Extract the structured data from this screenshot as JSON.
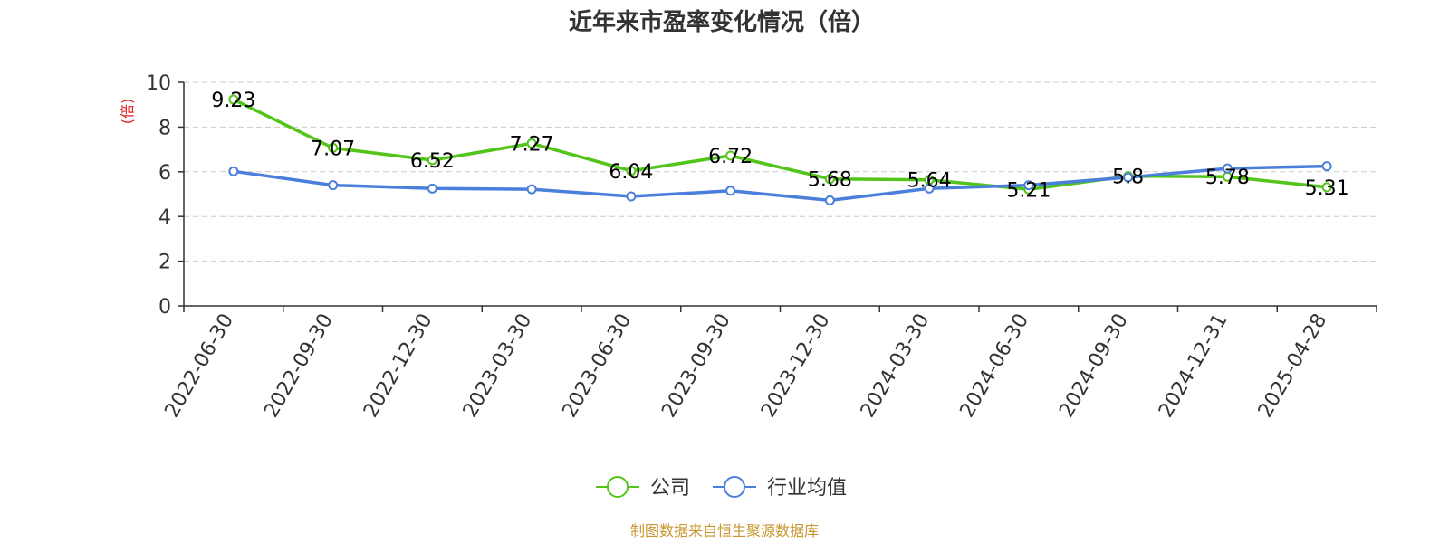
{
  "chart_data": {
    "type": "line",
    "title": "近年来市盈率变化情况（倍）",
    "ylabel": "(倍)",
    "ylim": [
      0,
      10
    ],
    "yticks": [
      0,
      2,
      4,
      6,
      8,
      10
    ],
    "grid": true,
    "legend_position": "bottom-center",
    "categories": [
      "2022-06-30",
      "2022-09-30",
      "2022-12-30",
      "2023-03-30",
      "2023-06-30",
      "2023-09-30",
      "2023-12-30",
      "2024-03-30",
      "2024-06-30",
      "2024-09-30",
      "2024-12-31",
      "2025-04-28"
    ],
    "series": [
      {
        "name": "公司",
        "color": "#52c41a",
        "values": [
          9.23,
          7.07,
          6.52,
          7.27,
          6.04,
          6.72,
          5.68,
          5.64,
          5.21,
          5.8,
          5.78,
          5.31
        ],
        "labels": [
          "9.23",
          "7.07",
          "6.52",
          "7.27",
          "6.04",
          "6.72",
          "5.68",
          "5.64",
          "5.21",
          "5.8",
          "5.78",
          "5.31"
        ]
      },
      {
        "name": "行业均值",
        "color": "#4a7fdb",
        "values": [
          6.02,
          5.4,
          5.25,
          5.22,
          4.9,
          5.15,
          4.72,
          5.25,
          5.4,
          5.75,
          6.15,
          6.25
        ]
      }
    ],
    "source": "制图数据来自恒生聚源数据库",
    "source_color": "#c8962e",
    "ylabel_color": "#e02020"
  }
}
